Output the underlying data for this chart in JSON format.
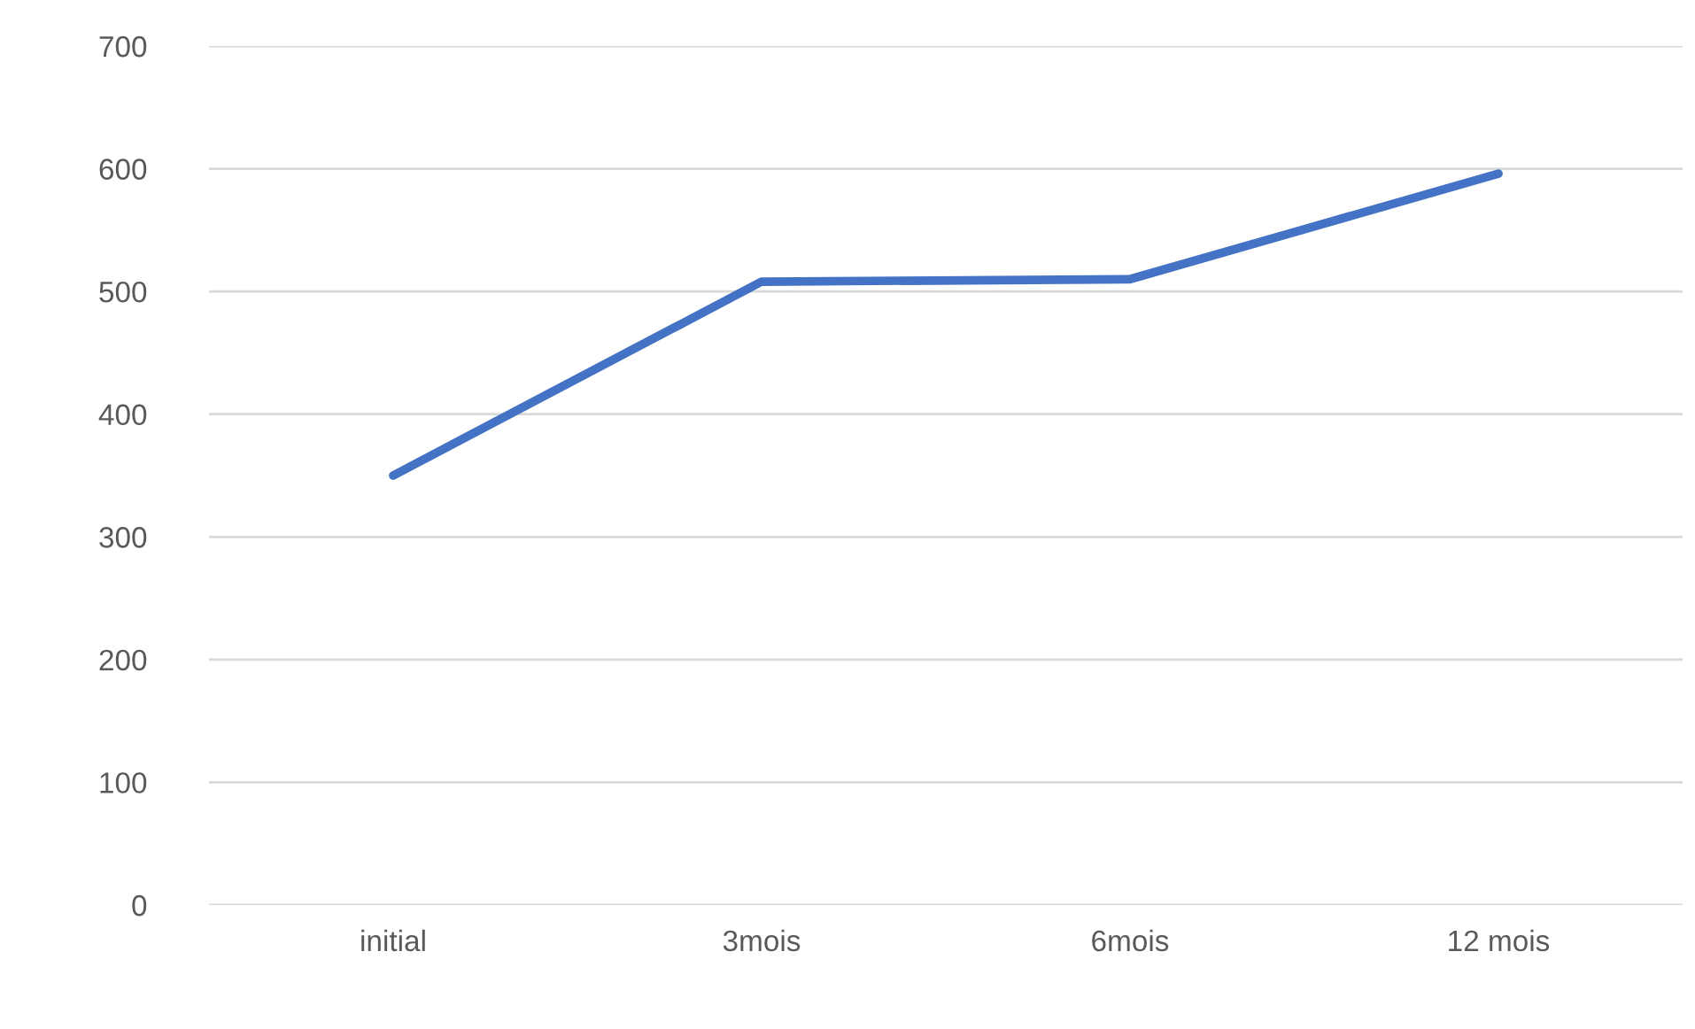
{
  "chart_data": {
    "type": "line",
    "categories": [
      "initial",
      "3mois",
      "6mois",
      "12 mois"
    ],
    "series": [
      {
        "color": "#4472c4",
        "values": [
          350,
          508,
          510,
          596
        ]
      }
    ],
    "ylim": [
      0,
      700
    ],
    "yticks": [
      0,
      100,
      200,
      300,
      400,
      500,
      600,
      700
    ],
    "grid": "y",
    "legend": false,
    "marker": "none",
    "line_style": "solid"
  }
}
